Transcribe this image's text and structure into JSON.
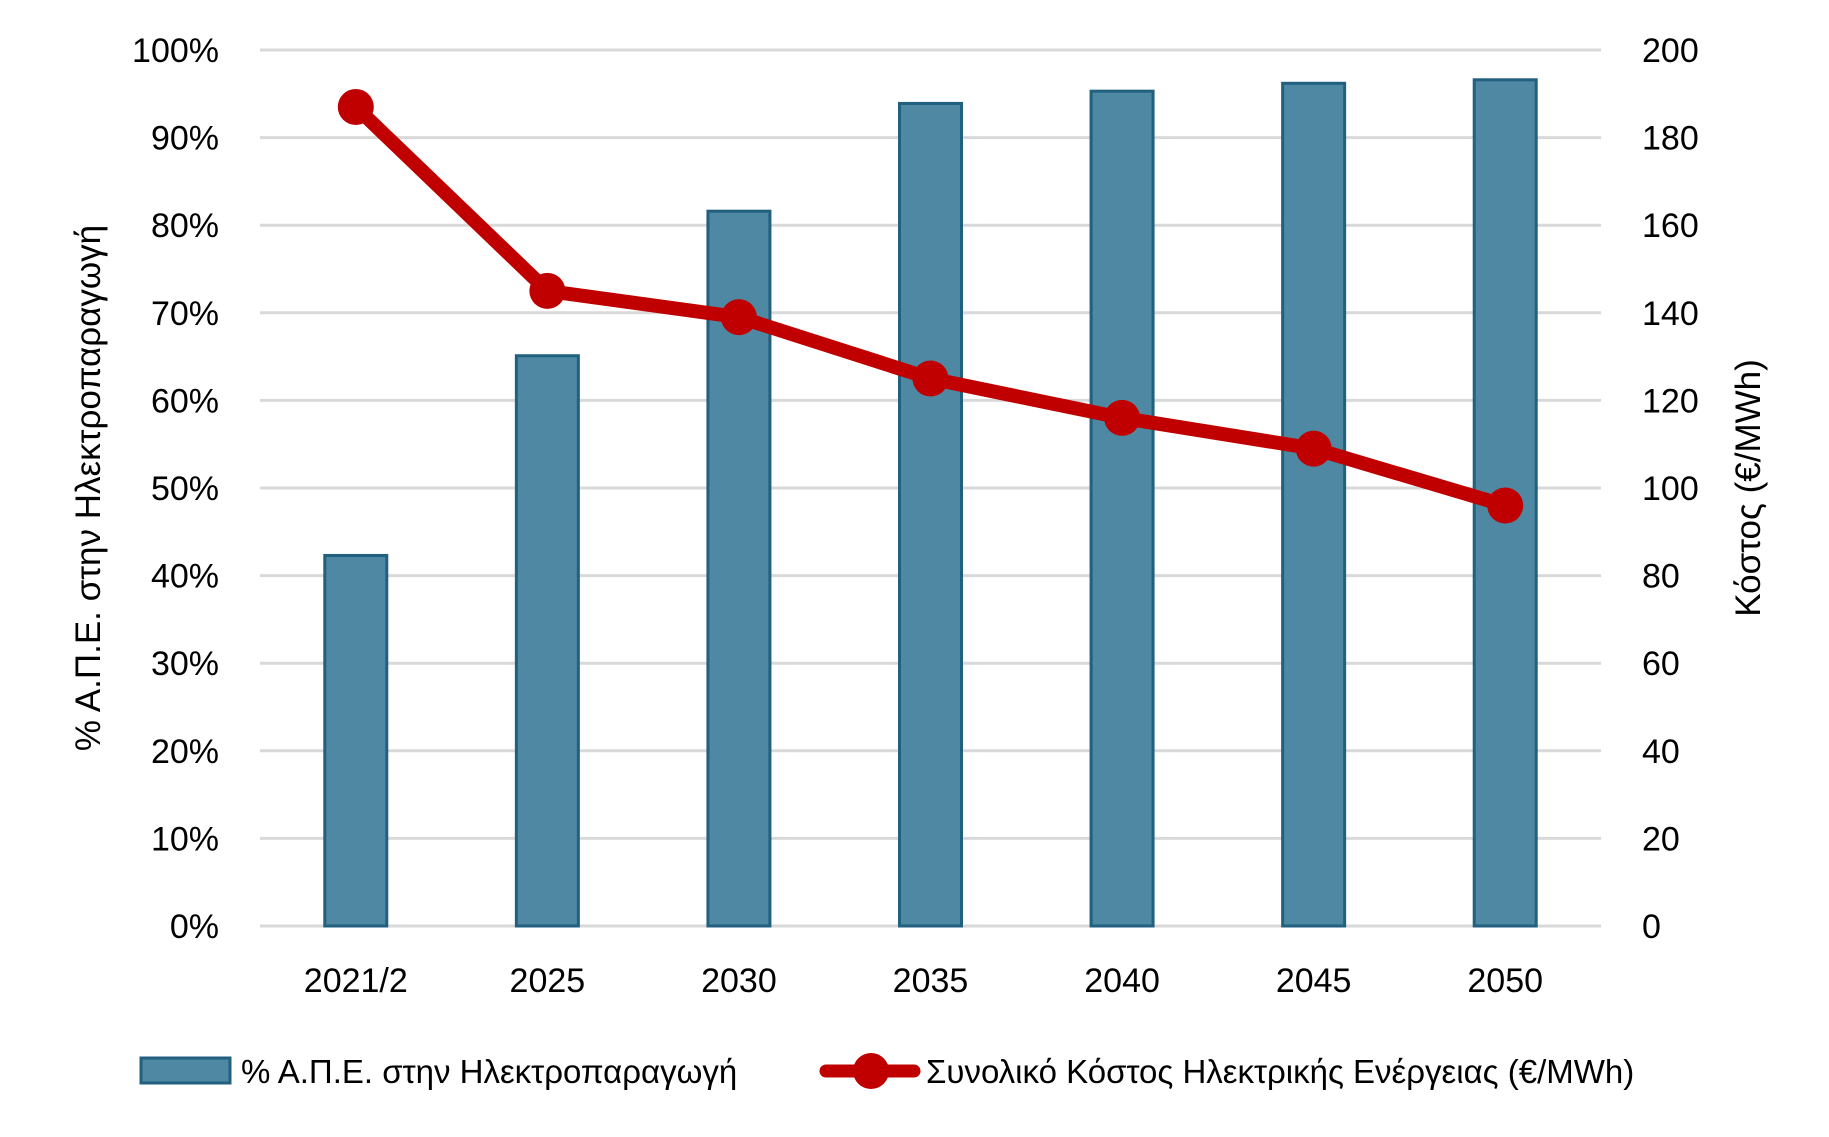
{
  "chart_data": {
    "type": "bar+line",
    "title": "",
    "categories": [
      "2021/2",
      "2025",
      "2030",
      "2035",
      "2040",
      "2045",
      "2050"
    ],
    "series": [
      {
        "name": "% Α.Π.Ε. στην Ηλεκτροπαραγωγή",
        "type": "bar",
        "axis": "left",
        "unit": "%",
        "values": [
          42.3,
          65.1,
          81.6,
          93.9,
          95.3,
          96.2,
          96.6
        ],
        "color": "#4f88a2",
        "border_color": "#21607f"
      },
      {
        "name": "Συνολικό Κόστος Ηλεκτρικής Ενέργειας (€/MWh)",
        "type": "line",
        "axis": "right",
        "unit": "€/MWh",
        "values": [
          187,
          145,
          139,
          125,
          116,
          109,
          96
        ],
        "color": "#c00000",
        "marker": "circle"
      }
    ],
    "xlabel": "",
    "ylabel": "% Α.Π.Ε. στην Ηλεκτροπαραγωγή",
    "ylabel_right": "Κόστος (€/MWh)",
    "ylim": [
      0,
      100
    ],
    "ylim_right": [
      0,
      200
    ],
    "yticks": [
      "0%",
      "10%",
      "20%",
      "30%",
      "40%",
      "50%",
      "60%",
      "70%",
      "80%",
      "90%",
      "100%"
    ],
    "yticks_right": [
      "0",
      "20",
      "40",
      "60",
      "80",
      "100",
      "120",
      "140",
      "160",
      "180",
      "200"
    ],
    "grid": true,
    "grid_color": "#d9d9d9",
    "legend_position": "bottom"
  },
  "legend": {
    "bar_label": "% Α.Π.Ε. στην Ηλεκτροπαραγωγή",
    "line_label": "Συνολικό Κόστος Ηλεκτρικής Ενέργειας (€/MWh)"
  },
  "axes": {
    "left_title": "% Α.Π.Ε. στην Ηλεκτροπαραγωγή",
    "right_title": "Κόστος (€/MWh)"
  }
}
